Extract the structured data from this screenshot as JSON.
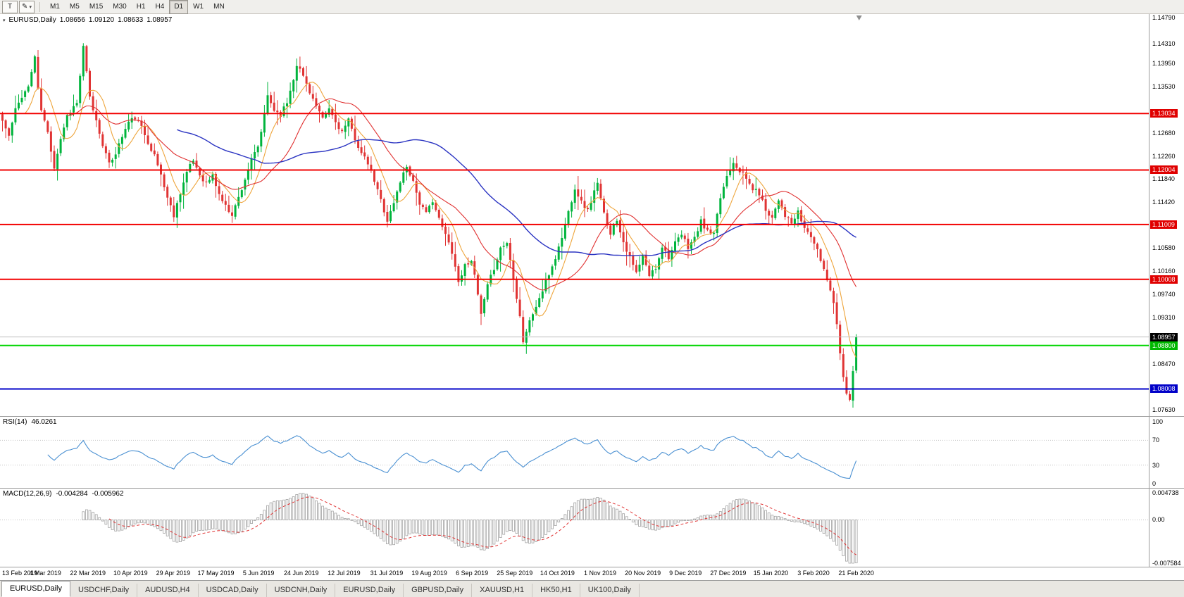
{
  "toolbar": {
    "t_button_label": "T",
    "timeframes": [
      "M1",
      "M5",
      "M15",
      "M30",
      "H1",
      "H4",
      "D1",
      "W1",
      "MN"
    ],
    "active_timeframe": "D1"
  },
  "chart": {
    "symbol_period": "EURUSD,Daily",
    "ohlc": {
      "open": "1.08656",
      "high": "1.09120",
      "low": "1.08633",
      "close": "1.08957"
    },
    "colors": {
      "up": "#00b43c",
      "down": "#e03434"
    },
    "price_axis": {
      "max": 1.1485,
      "min": 1.075,
      "ticks": [
        {
          "p": 1.1479,
          "label": "1.14790"
        },
        {
          "p": 1.1431,
          "label": "1.14310"
        },
        {
          "p": 1.1395,
          "label": "1.13950"
        },
        {
          "p": 1.1353,
          "label": "1.13530"
        },
        {
          "p": 1.1268,
          "label": "1.12680"
        },
        {
          "p": 1.1226,
          "label": "1.12260"
        },
        {
          "p": 1.1184,
          "label": "1.11840"
        },
        {
          "p": 1.1142,
          "label": "1.11420"
        },
        {
          "p": 1.1058,
          "label": "1.10580"
        },
        {
          "p": 1.1016,
          "label": "1.10160"
        },
        {
          "p": 1.0974,
          "label": "1.09740"
        },
        {
          "p": 1.0931,
          "label": "1.09310"
        },
        {
          "p": 1.0847,
          "label": "1.08470"
        },
        {
          "p": 1.0763,
          "label": "1.07630"
        }
      ]
    },
    "hlines": [
      {
        "p": 1.13034,
        "label": "1.13034",
        "color": "#f20000",
        "width": 2,
        "label_bg": "#e00000"
      },
      {
        "p": 1.12004,
        "label": "1.12004",
        "color": "#f20000",
        "width": 2,
        "label_bg": "#e00000"
      },
      {
        "p": 1.11009,
        "label": "1.11009",
        "color": "#f20000",
        "width": 2,
        "label_bg": "#e00000"
      },
      {
        "p": 1.10008,
        "label": "1.10008",
        "color": "#f20000",
        "width": 2,
        "label_bg": "#e00000"
      },
      {
        "p": 1.08957,
        "label": "1.08957",
        "color": "#bfbfbf",
        "width": 1,
        "label_bg": "#000000"
      },
      {
        "p": 1.088,
        "label": "1.08800",
        "color": "#00d500",
        "width": 2,
        "label_bg": "#00b800"
      },
      {
        "p": 1.08008,
        "label": "1.08008",
        "color": "#0000c8",
        "width": 2,
        "label_bg": "#0000c8"
      }
    ],
    "moving_averages": [
      {
        "name": "fast-ma",
        "period": 8,
        "color": "#eea53c",
        "width": 1.1
      },
      {
        "name": "medium-ma",
        "period": 21,
        "color": "#e03030",
        "width": 1.1
      },
      {
        "name": "slow-ma",
        "period": 55,
        "color": "#2b34c2",
        "width": 1.4
      }
    ]
  },
  "chart_data": {
    "type": "candlestick",
    "symbol": "EURUSD",
    "timeframe": "Daily",
    "bars": 265,
    "seed": 11,
    "y_range": [
      1.075,
      1.1485
    ],
    "key_levels": [
      1.13034,
      1.12004,
      1.11009,
      1.10008,
      1.08957,
      1.088,
      1.08008
    ],
    "indicators": [
      "RSI(14)",
      "MACD(12,26,9)"
    ],
    "x_labels": [
      "13 Feb 2019",
      "4 Mar 2019",
      "22 Mar 2019",
      "10 Apr 2019",
      "29 Apr 2019",
      "17 May 2019",
      "5 Jun 2019",
      "24 Jun 2019",
      "12 Jul 2019",
      "31 Jul 2019",
      "19 Aug 2019",
      "6 Sep 2019",
      "25 Sep 2019",
      "14 Oct 2019",
      "1 Nov 2019",
      "20 Nov 2019",
      "9 Dec 2019",
      "27 Dec 2019",
      "15 Jan 2020",
      "3 Feb 2020",
      "21 Feb 2020"
    ],
    "close_anchors": [
      [
        0,
        1.129
      ],
      [
        2,
        1.1262
      ],
      [
        4,
        1.131
      ],
      [
        6,
        1.1336
      ],
      [
        8,
        1.1352
      ],
      [
        10,
        1.1408
      ],
      [
        11,
        1.1346
      ],
      [
        12,
        1.131
      ],
      [
        14,
        1.1268
      ],
      [
        16,
        1.1206
      ],
      [
        18,
        1.1258
      ],
      [
        20,
        1.13
      ],
      [
        22,
        1.1316
      ],
      [
        23,
        1.1322
      ],
      [
        25,
        1.1424
      ],
      [
        27,
        1.1332
      ],
      [
        29,
        1.129
      ],
      [
        31,
        1.1248
      ],
      [
        33,
        1.121
      ],
      [
        35,
        1.1232
      ],
      [
        37,
        1.1262
      ],
      [
        39,
        1.1288
      ],
      [
        41,
        1.1296
      ],
      [
        43,
        1.1278
      ],
      [
        45,
        1.1252
      ],
      [
        47,
        1.1226
      ],
      [
        49,
        1.1192
      ],
      [
        51,
        1.115
      ],
      [
        53,
        1.1118
      ],
      [
        55,
        1.116
      ],
      [
        57,
        1.1196
      ],
      [
        59,
        1.1218
      ],
      [
        61,
        1.1192
      ],
      [
        63,
        1.1176
      ],
      [
        65,
        1.119
      ],
      [
        67,
        1.1156
      ],
      [
        69,
        1.1134
      ],
      [
        71,
        1.112
      ],
      [
        73,
        1.115
      ],
      [
        75,
        1.1184
      ],
      [
        77,
        1.1218
      ],
      [
        79,
        1.1242
      ],
      [
        81,
        1.13
      ],
      [
        82,
        1.1336
      ],
      [
        84,
        1.131
      ],
      [
        86,
        1.1302
      ],
      [
        88,
        1.1324
      ],
      [
        90,
        1.1368
      ],
      [
        91,
        1.1394
      ],
      [
        93,
        1.1372
      ],
      [
        95,
        1.1344
      ],
      [
        97,
        1.1316
      ],
      [
        99,
        1.1292
      ],
      [
        101,
        1.1312
      ],
      [
        103,
        1.1288
      ],
      [
        105,
        1.127
      ],
      [
        107,
        1.129
      ],
      [
        109,
        1.1258
      ],
      [
        111,
        1.123
      ],
      [
        113,
        1.1212
      ],
      [
        115,
        1.118
      ],
      [
        117,
        1.1146
      ],
      [
        119,
        1.1108
      ],
      [
        121,
        1.114
      ],
      [
        123,
        1.118
      ],
      [
        125,
        1.1208
      ],
      [
        127,
        1.118
      ],
      [
        129,
        1.114
      ],
      [
        131,
        1.112
      ],
      [
        133,
        1.1146
      ],
      [
        135,
        1.111
      ],
      [
        137,
        1.1082
      ],
      [
        139,
        1.1052
      ],
      [
        141,
        1.0996
      ],
      [
        143,
        1.1026
      ],
      [
        145,
        1.1038
      ],
      [
        147,
        1.0972
      ],
      [
        148,
        1.0936
      ],
      [
        150,
        1.0988
      ],
      [
        152,
        1.1022
      ],
      [
        154,
        1.1058
      ],
      [
        156,
        1.1068
      ],
      [
        158,
        1.1004
      ],
      [
        160,
        1.0934
      ],
      [
        161,
        1.0888
      ],
      [
        163,
        1.0924
      ],
      [
        165,
        1.0952
      ],
      [
        167,
        1.098
      ],
      [
        169,
        1.101
      ],
      [
        171,
        1.104
      ],
      [
        173,
        1.1078
      ],
      [
        175,
        1.1124
      ],
      [
        177,
        1.1168
      ],
      [
        179,
        1.1142
      ],
      [
        181,
        1.1126
      ],
      [
        183,
        1.1162
      ],
      [
        184,
        1.1174
      ],
      [
        186,
        1.112
      ],
      [
        188,
        1.1086
      ],
      [
        190,
        1.111
      ],
      [
        192,
        1.107
      ],
      [
        194,
        1.104
      ],
      [
        196,
        1.1012
      ],
      [
        198,
        1.1042
      ],
      [
        200,
        1.1008
      ],
      [
        202,
        1.1022
      ],
      [
        204,
        1.1062
      ],
      [
        206,
        1.1042
      ],
      [
        208,
        1.1066
      ],
      [
        210,
        1.1082
      ],
      [
        212,
        1.106
      ],
      [
        214,
        1.1076
      ],
      [
        216,
        1.1106
      ],
      [
        218,
        1.1088
      ],
      [
        220,
        1.1082
      ],
      [
        222,
        1.115
      ],
      [
        224,
        1.119
      ],
      [
        226,
        1.1216
      ],
      [
        228,
        1.12
      ],
      [
        230,
        1.1184
      ],
      [
        232,
        1.1166
      ],
      [
        234,
        1.1158
      ],
      [
        236,
        1.1128
      ],
      [
        238,
        1.1114
      ],
      [
        240,
        1.1148
      ],
      [
        242,
        1.1118
      ],
      [
        244,
        1.1102
      ],
      [
        246,
        1.1122
      ],
      [
        248,
        1.1094
      ],
      [
        250,
        1.108
      ],
      [
        252,
        1.1052
      ],
      [
        254,
        1.102
      ],
      [
        255,
        1.1
      ],
      [
        256,
        1.0984
      ],
      [
        257,
        1.096
      ],
      [
        258,
        1.0918
      ],
      [
        259,
        1.087
      ],
      [
        260,
        1.0826
      ],
      [
        261,
        1.079
      ],
      [
        262,
        1.0784
      ],
      [
        263,
        1.0836
      ],
      [
        264,
        1.0896
      ]
    ]
  },
  "rsi_panel": {
    "name": "RSI(14)",
    "value": "46.0261",
    "line_color": "#4a90d2",
    "levels": [
      {
        "v": 100,
        "label": "100"
      },
      {
        "v": 70,
        "label": "70"
      },
      {
        "v": 30,
        "label": "30"
      },
      {
        "v": 0,
        "label": "0"
      }
    ]
  },
  "macd_panel": {
    "name": "MACD(12,26,9)",
    "value_main": "-0.004284",
    "value_signal": "-0.005962",
    "histogram_color": "#a2a2a2",
    "signal_color": "#e03434",
    "range": {
      "max": 0.004738,
      "min": -0.007584
    },
    "axis": [
      {
        "v": 0.004738,
        "label": "0.004738"
      },
      {
        "v": 0,
        "label": "0.00"
      },
      {
        "v": -0.007584,
        "label": "-0.007584"
      }
    ]
  },
  "bottom_tabs": {
    "active_index": 0,
    "labels": [
      "EURUSD,Daily",
      "USDCHF,Daily",
      "AUDUSD,H4",
      "USDCAD,Daily",
      "USDCNH,Daily",
      "EURUSD,Daily",
      "GBPUSD,Daily",
      "XAUUSD,H1",
      "HK50,H1",
      "UK100,Daily"
    ]
  }
}
